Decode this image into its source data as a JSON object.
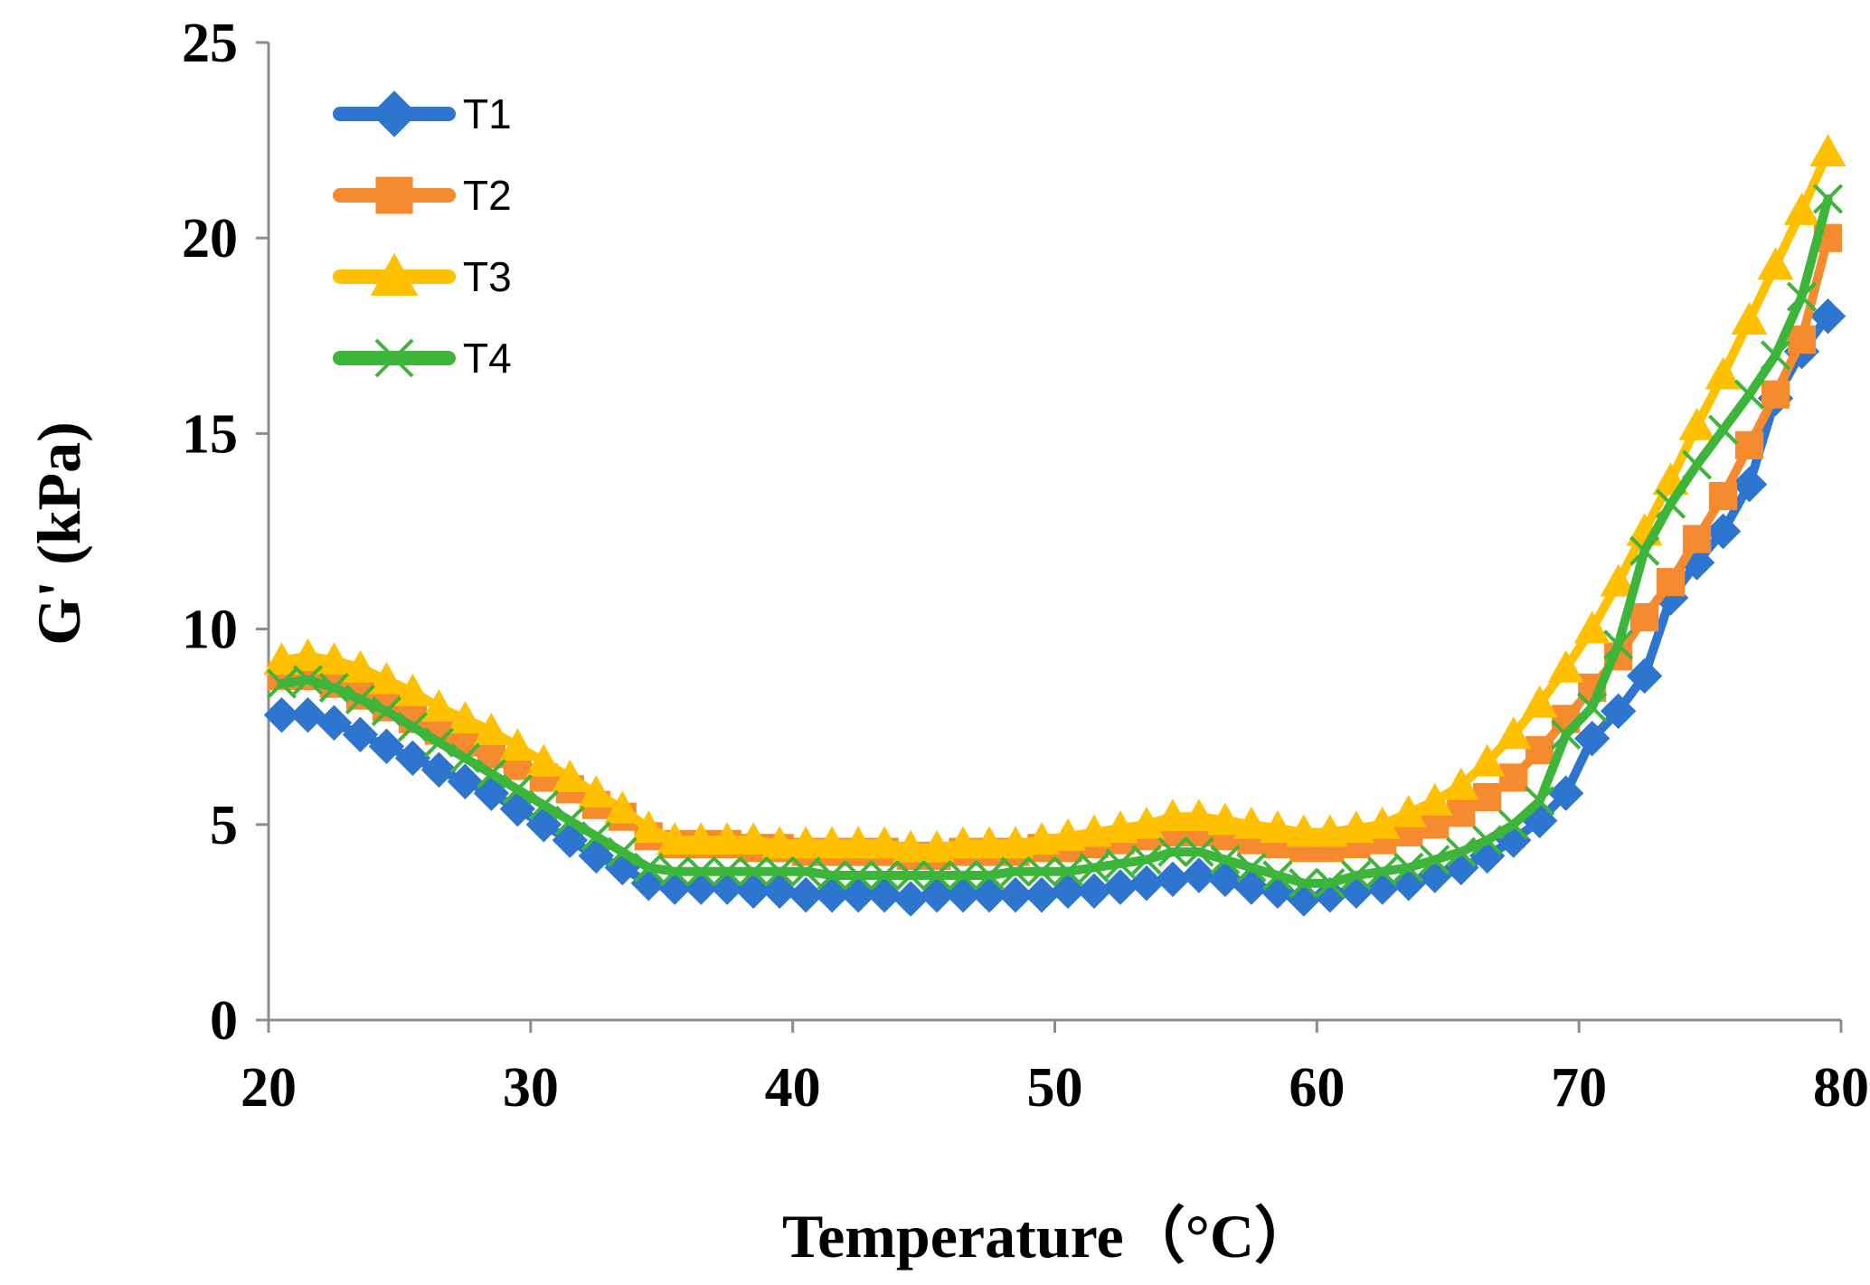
{
  "chart_data": {
    "type": "line",
    "title": "",
    "xlabel": "Temperature（°C）",
    "ylabel": "G' (kPa)",
    "xlim": [
      20,
      80
    ],
    "ylim": [
      0,
      25
    ],
    "x_ticks": [
      "20",
      "30",
      "40",
      "50",
      "60",
      "70",
      "80"
    ],
    "y_ticks": [
      "0",
      "5",
      "10",
      "15",
      "20",
      "25"
    ],
    "grid": false,
    "legend_position": "top-left",
    "colors": {
      "T1": "#2e75d0",
      "T2": "#f58a2f",
      "T3": "#ffc000",
      "T4": "#3db53a"
    },
    "series": [
      {
        "name": "T1",
        "marker": "diamond",
        "points": [
          [
            20.5,
            7.8
          ],
          [
            21.5,
            7.8
          ],
          [
            22.5,
            7.6
          ],
          [
            23.5,
            7.3
          ],
          [
            24.5,
            7.0
          ],
          [
            25.5,
            6.7
          ],
          [
            26.5,
            6.4
          ],
          [
            27.5,
            6.1
          ],
          [
            28.5,
            5.8
          ],
          [
            29.5,
            5.4
          ],
          [
            30.5,
            5.0
          ],
          [
            31.5,
            4.6
          ],
          [
            32.5,
            4.2
          ],
          [
            33.5,
            3.9
          ],
          [
            34.5,
            3.5
          ],
          [
            35.5,
            3.4
          ],
          [
            36.5,
            3.4
          ],
          [
            37.5,
            3.4
          ],
          [
            38.5,
            3.3
          ],
          [
            39.5,
            3.3
          ],
          [
            40.5,
            3.2
          ],
          [
            41.5,
            3.2
          ],
          [
            42.5,
            3.2
          ],
          [
            43.5,
            3.2
          ],
          [
            44.5,
            3.1
          ],
          [
            45.5,
            3.2
          ],
          [
            46.5,
            3.2
          ],
          [
            47.5,
            3.2
          ],
          [
            48.5,
            3.2
          ],
          [
            49.5,
            3.2
          ],
          [
            50.5,
            3.3
          ],
          [
            51.5,
            3.3
          ],
          [
            52.5,
            3.4
          ],
          [
            53.5,
            3.5
          ],
          [
            54.5,
            3.6
          ],
          [
            55.5,
            3.7
          ],
          [
            56.5,
            3.6
          ],
          [
            57.5,
            3.4
          ],
          [
            58.5,
            3.3
          ],
          [
            59.5,
            3.1
          ],
          [
            60.5,
            3.2
          ],
          [
            61.5,
            3.3
          ],
          [
            62.5,
            3.4
          ],
          [
            63.5,
            3.5
          ],
          [
            64.5,
            3.7
          ],
          [
            65.5,
            3.9
          ],
          [
            66.5,
            4.2
          ],
          [
            67.5,
            4.6
          ],
          [
            68.5,
            5.1
          ],
          [
            69.5,
            5.8
          ],
          [
            70.5,
            7.2
          ],
          [
            71.5,
            7.9
          ],
          [
            72.5,
            8.8
          ],
          [
            73.5,
            10.8
          ],
          [
            74.5,
            11.7
          ],
          [
            75.5,
            12.5
          ],
          [
            76.5,
            13.7
          ],
          [
            77.5,
            15.9
          ],
          [
            78.5,
            17.1
          ],
          [
            79.5,
            18.0
          ]
        ]
      },
      {
        "name": "T2",
        "marker": "square",
        "points": [
          [
            20.5,
            8.8
          ],
          [
            21.5,
            8.8
          ],
          [
            22.5,
            8.6
          ],
          [
            23.5,
            8.3
          ],
          [
            24.5,
            8.0
          ],
          [
            25.5,
            7.7
          ],
          [
            26.5,
            7.4
          ],
          [
            27.5,
            7.1
          ],
          [
            28.5,
            6.8
          ],
          [
            29.5,
            6.5
          ],
          [
            30.5,
            6.2
          ],
          [
            31.5,
            5.9
          ],
          [
            32.5,
            5.5
          ],
          [
            33.5,
            5.2
          ],
          [
            34.5,
            4.7
          ],
          [
            35.5,
            4.5
          ],
          [
            36.5,
            4.5
          ],
          [
            37.5,
            4.5
          ],
          [
            38.5,
            4.4
          ],
          [
            39.5,
            4.4
          ],
          [
            40.5,
            4.3
          ],
          [
            41.5,
            4.3
          ],
          [
            42.5,
            4.3
          ],
          [
            43.5,
            4.3
          ],
          [
            44.5,
            4.2
          ],
          [
            45.5,
            4.2
          ],
          [
            46.5,
            4.3
          ],
          [
            47.5,
            4.3
          ],
          [
            48.5,
            4.3
          ],
          [
            49.5,
            4.4
          ],
          [
            50.5,
            4.4
          ],
          [
            51.5,
            4.5
          ],
          [
            52.5,
            4.6
          ],
          [
            53.5,
            4.7
          ],
          [
            54.5,
            4.8
          ],
          [
            55.5,
            4.8
          ],
          [
            56.5,
            4.7
          ],
          [
            57.5,
            4.6
          ],
          [
            58.5,
            4.5
          ],
          [
            59.5,
            4.4
          ],
          [
            60.5,
            4.4
          ],
          [
            61.5,
            4.5
          ],
          [
            62.5,
            4.6
          ],
          [
            63.5,
            4.8
          ],
          [
            64.5,
            5.0
          ],
          [
            65.5,
            5.3
          ],
          [
            66.5,
            5.7
          ],
          [
            67.5,
            6.2
          ],
          [
            68.5,
            6.9
          ],
          [
            69.5,
            7.7
          ],
          [
            70.5,
            8.5
          ],
          [
            71.5,
            9.3
          ],
          [
            72.5,
            10.3
          ],
          [
            73.5,
            11.2
          ],
          [
            74.5,
            12.3
          ],
          [
            75.5,
            13.4
          ],
          [
            76.5,
            14.7
          ],
          [
            77.5,
            16.0
          ],
          [
            78.5,
            17.4
          ],
          [
            79.5,
            20.0
          ]
        ]
      },
      {
        "name": "T3",
        "marker": "triangle",
        "points": [
          [
            20.5,
            9.2
          ],
          [
            21.5,
            9.3
          ],
          [
            22.5,
            9.2
          ],
          [
            23.5,
            9.0
          ],
          [
            24.5,
            8.7
          ],
          [
            25.5,
            8.4
          ],
          [
            26.5,
            8.0
          ],
          [
            27.5,
            7.7
          ],
          [
            28.5,
            7.4
          ],
          [
            29.5,
            7.0
          ],
          [
            30.5,
            6.6
          ],
          [
            31.5,
            6.2
          ],
          [
            32.5,
            5.8
          ],
          [
            33.5,
            5.4
          ],
          [
            34.5,
            4.9
          ],
          [
            35.5,
            4.6
          ],
          [
            36.5,
            4.6
          ],
          [
            37.5,
            4.6
          ],
          [
            38.5,
            4.6
          ],
          [
            39.5,
            4.5
          ],
          [
            40.5,
            4.5
          ],
          [
            41.5,
            4.5
          ],
          [
            42.5,
            4.5
          ],
          [
            43.5,
            4.5
          ],
          [
            44.5,
            4.4
          ],
          [
            45.5,
            4.4
          ],
          [
            46.5,
            4.5
          ],
          [
            47.5,
            4.5
          ],
          [
            48.5,
            4.5
          ],
          [
            49.5,
            4.6
          ],
          [
            50.5,
            4.7
          ],
          [
            51.5,
            4.8
          ],
          [
            52.5,
            4.9
          ],
          [
            53.5,
            5.0
          ],
          [
            54.5,
            5.2
          ],
          [
            55.5,
            5.2
          ],
          [
            56.5,
            5.1
          ],
          [
            57.5,
            5.0
          ],
          [
            58.5,
            4.9
          ],
          [
            59.5,
            4.8
          ],
          [
            60.5,
            4.8
          ],
          [
            61.5,
            4.9
          ],
          [
            62.5,
            5.0
          ],
          [
            63.5,
            5.3
          ],
          [
            64.5,
            5.6
          ],
          [
            65.5,
            6.0
          ],
          [
            66.5,
            6.6
          ],
          [
            67.5,
            7.3
          ],
          [
            68.5,
            8.1
          ],
          [
            69.5,
            9.0
          ],
          [
            70.5,
            10.0
          ],
          [
            71.5,
            11.2
          ],
          [
            72.5,
            12.5
          ],
          [
            73.5,
            13.8
          ],
          [
            74.5,
            15.2
          ],
          [
            75.5,
            16.5
          ],
          [
            76.5,
            17.9
          ],
          [
            77.5,
            19.3
          ],
          [
            78.5,
            20.7
          ],
          [
            79.5,
            22.2
          ]
        ]
      },
      {
        "name": "T4",
        "marker": "x",
        "points": [
          [
            20.5,
            8.6
          ],
          [
            21.5,
            8.7
          ],
          [
            22.5,
            8.5
          ],
          [
            23.5,
            8.2
          ],
          [
            24.5,
            7.9
          ],
          [
            25.5,
            7.5
          ],
          [
            26.5,
            7.1
          ],
          [
            27.5,
            6.7
          ],
          [
            28.5,
            6.3
          ],
          [
            29.5,
            5.9
          ],
          [
            30.5,
            5.5
          ],
          [
            31.5,
            5.1
          ],
          [
            32.5,
            4.7
          ],
          [
            33.5,
            4.3
          ],
          [
            34.5,
            3.9
          ],
          [
            35.5,
            3.8
          ],
          [
            36.5,
            3.8
          ],
          [
            37.5,
            3.8
          ],
          [
            38.5,
            3.8
          ],
          [
            39.5,
            3.8
          ],
          [
            40.5,
            3.8
          ],
          [
            41.5,
            3.7
          ],
          [
            42.5,
            3.7
          ],
          [
            43.5,
            3.7
          ],
          [
            44.5,
            3.7
          ],
          [
            45.5,
            3.7
          ],
          [
            46.5,
            3.7
          ],
          [
            47.5,
            3.7
          ],
          [
            48.5,
            3.8
          ],
          [
            49.5,
            3.8
          ],
          [
            50.5,
            3.8
          ],
          [
            51.5,
            3.9
          ],
          [
            52.5,
            4.0
          ],
          [
            53.5,
            4.1
          ],
          [
            54.5,
            4.3
          ],
          [
            55.5,
            4.3
          ],
          [
            56.5,
            4.1
          ],
          [
            57.5,
            3.9
          ],
          [
            58.5,
            3.7
          ],
          [
            59.5,
            3.5
          ],
          [
            60.5,
            3.5
          ],
          [
            61.5,
            3.7
          ],
          [
            62.5,
            3.8
          ],
          [
            63.5,
            3.9
          ],
          [
            64.5,
            4.1
          ],
          [
            65.5,
            4.3
          ],
          [
            66.5,
            4.6
          ],
          [
            67.5,
            5.0
          ],
          [
            68.5,
            5.6
          ],
          [
            69.5,
            7.3
          ],
          [
            70.5,
            8.0
          ],
          [
            71.5,
            9.6
          ],
          [
            72.5,
            12.0
          ],
          [
            73.5,
            13.2
          ],
          [
            74.5,
            14.2
          ],
          [
            75.5,
            15.1
          ],
          [
            76.5,
            16.0
          ],
          [
            77.5,
            17.0
          ],
          [
            78.5,
            18.5
          ],
          [
            79.5,
            21.0
          ]
        ]
      }
    ]
  }
}
